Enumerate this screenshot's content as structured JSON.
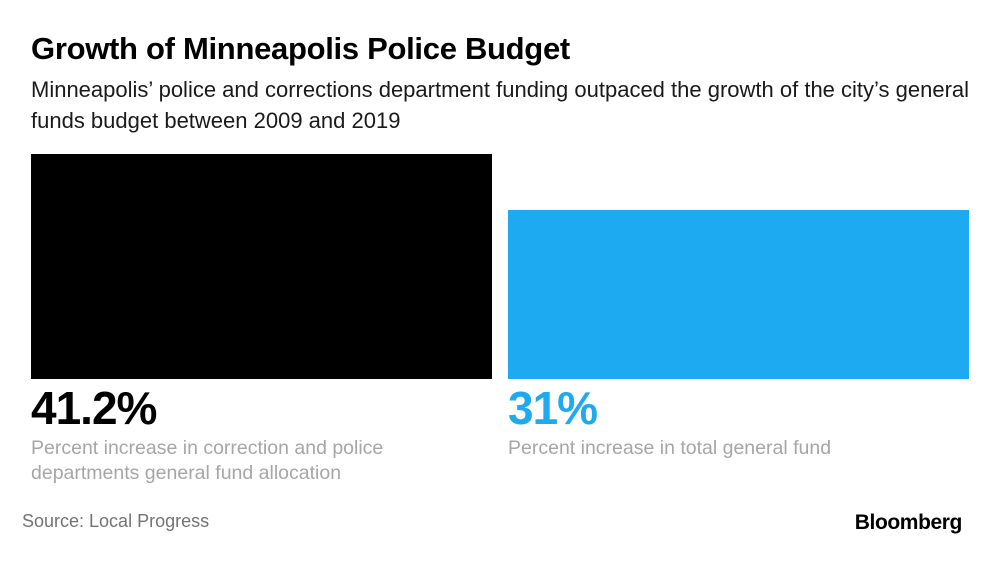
{
  "chart_data": {
    "type": "bar",
    "title": "Growth of Minneapolis Police Budget",
    "subtitle": "Minneapolis’ police and corrections department funding outpaced the growth of the city’s general funds budget between 2009 and 2019",
    "categories": [
      "Percent increase in correction and police departments general fund allocation",
      "Percent increase in total general fund"
    ],
    "values": [
      41.2,
      31
    ],
    "value_labels": [
      "41.2%",
      "31%"
    ],
    "colors": [
      "#000000",
      "#1eaaf1"
    ],
    "ylim": [
      0,
      41.2
    ],
    "xlabel": "",
    "ylabel": "",
    "grid": false
  },
  "source": "Source: Local Progress",
  "brand": "Bloomberg"
}
